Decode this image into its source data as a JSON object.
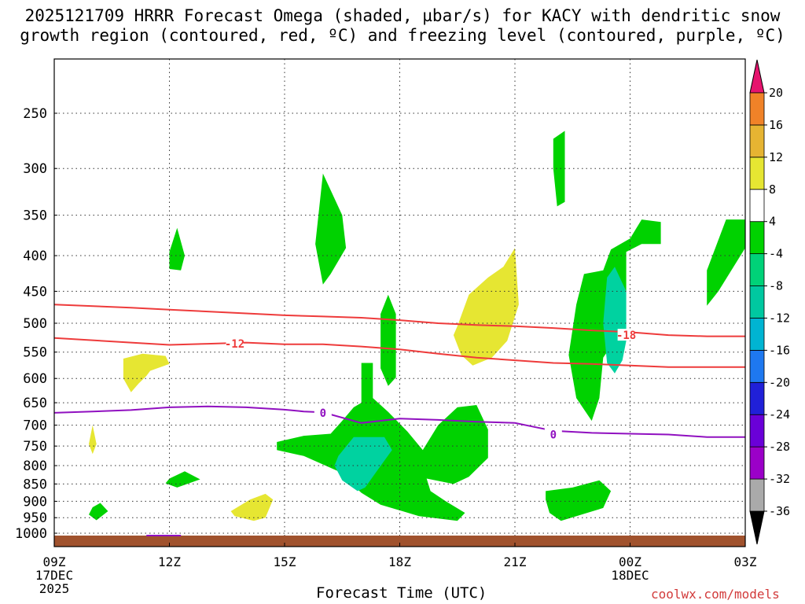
{
  "chart_data": {
    "type": "contour",
    "title_line1": "2025121709 HRRR Forecast Omega (shaded, µbar/s) for KACY with dendritic snow",
    "title_line2": "growth region (contoured, red, ºC) and freezing level (contoured, purple, ºC)",
    "xlabel": "Forecast Time (UTC)",
    "credit": "coolwx.com/models",
    "x_ticks": [
      {
        "hour": 0,
        "label": "09Z",
        "sub1": "17DEC",
        "sub2": "2025"
      },
      {
        "hour": 3,
        "label": "12Z",
        "sub1": "",
        "sub2": ""
      },
      {
        "hour": 6,
        "label": "15Z",
        "sub1": "",
        "sub2": ""
      },
      {
        "hour": 9,
        "label": "18Z",
        "sub1": "",
        "sub2": ""
      },
      {
        "hour": 12,
        "label": "21Z",
        "sub1": "",
        "sub2": ""
      },
      {
        "hour": 15,
        "label": "00Z",
        "sub1": "18DEC",
        "sub2": ""
      },
      {
        "hour": 18,
        "label": "03Z",
        "sub1": "",
        "sub2": ""
      }
    ],
    "xlim_hours": [
      0,
      18
    ],
    "y_levels_hpa": [
      250,
      300,
      350,
      400,
      450,
      500,
      550,
      600,
      650,
      700,
      750,
      800,
      850,
      900,
      950,
      1000
    ],
    "colorbar": {
      "levels": [
        -36,
        -32,
        -28,
        -24,
        -20,
        -16,
        -12,
        -8,
        -4,
        4,
        8,
        12,
        16,
        20
      ],
      "colors": [
        "#aaaaaa",
        "#9b00c8",
        "#6a00d8",
        "#2020d8",
        "#1e78f0",
        "#00b4d2",
        "#00c8a0",
        "#00d278",
        "#00d200",
        "#ffffff",
        "#e6e632",
        "#e6b432",
        "#f08228",
        "#f05050"
      ],
      "top_color": "#e6146e",
      "bottom_color": "#000000"
    },
    "contour_labels": [
      {
        "text": "-12",
        "hour": 4.7,
        "hpa": 535,
        "color": "#ee3b3b"
      },
      {
        "text": "-18",
        "hour": 14.9,
        "hpa": 520,
        "color": "#ee3b3b"
      },
      {
        "text": "0",
        "hour": 7.0,
        "hpa": 672,
        "color": "#9010c0"
      },
      {
        "text": "0",
        "hour": 13.0,
        "hpa": 722,
        "color": "#9010c0"
      }
    ],
    "lines": [
      {
        "name": "dgz-minus12",
        "color": "#ee3b3b",
        "points": [
          [
            0,
            525
          ],
          [
            2,
            533
          ],
          [
            3,
            537
          ],
          [
            4,
            535
          ],
          [
            5,
            533
          ],
          [
            6,
            536
          ],
          [
            7,
            536
          ],
          [
            8,
            540
          ],
          [
            9,
            545
          ],
          [
            10,
            553
          ],
          [
            11,
            560
          ],
          [
            12,
            565
          ],
          [
            13,
            570
          ],
          [
            14,
            572
          ],
          [
            15,
            575
          ],
          [
            16,
            578
          ],
          [
            17,
            578
          ],
          [
            18,
            578
          ]
        ]
      },
      {
        "name": "dgz-minus18",
        "color": "#ee3b3b",
        "points": [
          [
            0,
            470
          ],
          [
            2,
            475
          ],
          [
            3,
            478
          ],
          [
            4,
            481
          ],
          [
            5,
            484
          ],
          [
            6,
            487
          ],
          [
            7,
            489
          ],
          [
            8,
            491
          ],
          [
            9,
            495
          ],
          [
            10,
            500
          ],
          [
            11,
            503
          ],
          [
            12,
            505
          ],
          [
            13,
            508
          ],
          [
            14,
            512
          ],
          [
            15,
            515
          ],
          [
            16,
            520
          ],
          [
            17,
            522
          ],
          [
            18,
            522
          ]
        ]
      },
      {
        "name": "freezing-level",
        "color": "#9010c0",
        "points": [
          [
            0,
            672
          ],
          [
            1,
            669
          ],
          [
            2,
            666
          ],
          [
            3,
            660
          ],
          [
            4,
            658
          ],
          [
            5,
            660
          ],
          [
            6,
            665
          ],
          [
            6.5,
            669
          ],
          [
            7,
            671
          ],
          [
            8,
            695
          ],
          [
            9,
            685
          ],
          [
            10,
            688
          ],
          [
            11,
            692
          ],
          [
            12,
            695
          ],
          [
            12.5,
            704
          ],
          [
            13,
            713
          ],
          [
            14,
            718
          ],
          [
            15,
            720
          ],
          [
            16,
            722
          ],
          [
            17,
            728
          ],
          [
            18,
            728
          ]
        ]
      }
    ],
    "shaded_regions": [
      {
        "color": "#00d200",
        "value_range": [
          -8,
          -4
        ],
        "points": [
          [
            3.0,
            395
          ],
          [
            3.2,
            365
          ],
          [
            3.4,
            400
          ],
          [
            3.3,
            420
          ],
          [
            3.0,
            418
          ]
        ]
      },
      {
        "color": "#00d200",
        "value_range": [
          -8,
          -4
        ],
        "points": [
          [
            6.8,
            385
          ],
          [
            7.0,
            305
          ],
          [
            7.5,
            350
          ],
          [
            7.6,
            390
          ],
          [
            7.2,
            425
          ],
          [
            7.0,
            440
          ]
        ]
      },
      {
        "color": "#00d200",
        "value_range": [
          -8,
          -4
        ],
        "points": [
          [
            13.0,
            272
          ],
          [
            13.3,
            265
          ],
          [
            13.3,
            335
          ],
          [
            13.1,
            340
          ],
          [
            13.0,
            300
          ]
        ]
      },
      {
        "color": "#00d200",
        "value_range": [
          -8,
          -4
        ],
        "points": [
          [
            14.3,
            420
          ],
          [
            14.5,
            392
          ],
          [
            15.0,
            378
          ],
          [
            15.3,
            355
          ],
          [
            15.8,
            358
          ],
          [
            15.8,
            385
          ],
          [
            15.3,
            385
          ],
          [
            14.9,
            395
          ],
          [
            14.9,
            450
          ],
          [
            14.7,
            520
          ],
          [
            14.3,
            560
          ],
          [
            14.2,
            640
          ],
          [
            14.0,
            690
          ],
          [
            13.6,
            640
          ],
          [
            13.4,
            555
          ],
          [
            13.6,
            470
          ],
          [
            13.8,
            425
          ]
        ]
      },
      {
        "color": "#00d200",
        "value_range": [
          -8,
          -4
        ],
        "points": [
          [
            17.0,
            420
          ],
          [
            17.5,
            355
          ],
          [
            18.0,
            355
          ],
          [
            18.0,
            390
          ],
          [
            17.3,
            450
          ],
          [
            17.0,
            472
          ]
        ]
      },
      {
        "color": "#00d200",
        "value_range": [
          -8,
          -4
        ],
        "points": [
          [
            8.5,
            485
          ],
          [
            8.7,
            455
          ],
          [
            8.9,
            485
          ],
          [
            8.9,
            598
          ],
          [
            8.7,
            615
          ],
          [
            8.5,
            580
          ]
        ]
      },
      {
        "color": "#00d200",
        "value_range": [
          -8,
          -4
        ],
        "points": [
          [
            8.0,
            570
          ],
          [
            8.3,
            570
          ],
          [
            8.3,
            640
          ],
          [
            8.7,
            670
          ],
          [
            9.2,
            715
          ],
          [
            9.6,
            760
          ],
          [
            10.0,
            700
          ],
          [
            10.5,
            660
          ],
          [
            11.0,
            655
          ],
          [
            11.3,
            710
          ],
          [
            11.3,
            780
          ],
          [
            10.8,
            830
          ],
          [
            10.4,
            850
          ],
          [
            9.7,
            835
          ],
          [
            9.8,
            870
          ],
          [
            10.2,
            900
          ],
          [
            10.7,
            935
          ],
          [
            10.5,
            960
          ],
          [
            9.5,
            945
          ],
          [
            8.5,
            910
          ],
          [
            8.0,
            875
          ],
          [
            7.4,
            815
          ],
          [
            6.5,
            775
          ],
          [
            5.8,
            760
          ],
          [
            5.8,
            740
          ],
          [
            6.5,
            725
          ],
          [
            7.2,
            720
          ],
          [
            7.5,
            690
          ],
          [
            7.8,
            660
          ],
          [
            8.0,
            650
          ]
        ]
      },
      {
        "color": "#00d200",
        "value_range": [
          -8,
          -4
        ],
        "points": [
          [
            3.0,
            835
          ],
          [
            3.4,
            815
          ],
          [
            3.8,
            837
          ],
          [
            3.2,
            860
          ],
          [
            2.9,
            848
          ]
        ]
      },
      {
        "color": "#00d200",
        "value_range": [
          -8,
          -4
        ],
        "points": [
          [
            1.0,
            918
          ],
          [
            1.2,
            905
          ],
          [
            1.4,
            930
          ],
          [
            1.1,
            958
          ],
          [
            0.9,
            940
          ]
        ]
      },
      {
        "color": "#00d200",
        "value_range": [
          -8,
          -4
        ],
        "points": [
          [
            12.8,
            870
          ],
          [
            13.5,
            860
          ],
          [
            14.2,
            840
          ],
          [
            14.5,
            870
          ],
          [
            14.3,
            920
          ],
          [
            13.2,
            960
          ],
          [
            12.9,
            935
          ],
          [
            12.8,
            895
          ]
        ]
      },
      {
        "color": "#00d2a0",
        "value_range": [
          -12,
          -8
        ],
        "points": [
          [
            7.4,
            775
          ],
          [
            7.8,
            728
          ],
          [
            8.6,
            728
          ],
          [
            8.8,
            760
          ],
          [
            8.4,
            815
          ],
          [
            8.1,
            860
          ],
          [
            7.9,
            870
          ],
          [
            7.5,
            840
          ],
          [
            7.3,
            800
          ]
        ]
      },
      {
        "color": "#00d2a0",
        "value_range": [
          -12,
          -8
        ],
        "points": [
          [
            14.4,
            430
          ],
          [
            14.6,
            415
          ],
          [
            14.9,
            450
          ],
          [
            14.9,
            530
          ],
          [
            14.8,
            565
          ],
          [
            14.6,
            590
          ],
          [
            14.4,
            570
          ],
          [
            14.3,
            500
          ]
        ]
      },
      {
        "color": "#e6e632",
        "value_range": [
          4,
          8
        ],
        "points": [
          [
            1.8,
            562
          ],
          [
            2.3,
            553
          ],
          [
            2.9,
            557
          ],
          [
            3.0,
            572
          ],
          [
            2.5,
            585
          ],
          [
            2.4,
            595
          ],
          [
            2.2,
            610
          ],
          [
            2.0,
            628
          ],
          [
            1.8,
            600
          ]
        ]
      },
      {
        "color": "#e6e632",
        "value_range": [
          4,
          8
        ],
        "points": [
          [
            0.9,
            745
          ],
          [
            1.0,
            700
          ],
          [
            1.1,
            745
          ],
          [
            1.0,
            770
          ]
        ]
      },
      {
        "color": "#e6e632",
        "value_range": [
          4,
          8
        ],
        "points": [
          [
            4.6,
            930
          ],
          [
            5.1,
            895
          ],
          [
            5.5,
            878
          ],
          [
            5.7,
            895
          ],
          [
            5.5,
            950
          ],
          [
            5.2,
            960
          ],
          [
            4.7,
            945
          ]
        ]
      },
      {
        "color": "#e6e632",
        "value_range": [
          4,
          8
        ],
        "points": [
          [
            10.5,
            505
          ],
          [
            10.8,
            455
          ],
          [
            11.3,
            430
          ],
          [
            11.7,
            415
          ],
          [
            12.0,
            390
          ],
          [
            12.1,
            470
          ],
          [
            11.8,
            530
          ],
          [
            11.4,
            560
          ],
          [
            10.9,
            575
          ],
          [
            10.6,
            555
          ],
          [
            10.4,
            520
          ]
        ]
      }
    ],
    "surface": {
      "color": "#a0522d",
      "label": "ground"
    },
    "small_marks": [
      {
        "color": "#9010c0",
        "hour_start": 2.4,
        "hour_end": 3.3,
        "hpa": 1003
      }
    ]
  }
}
